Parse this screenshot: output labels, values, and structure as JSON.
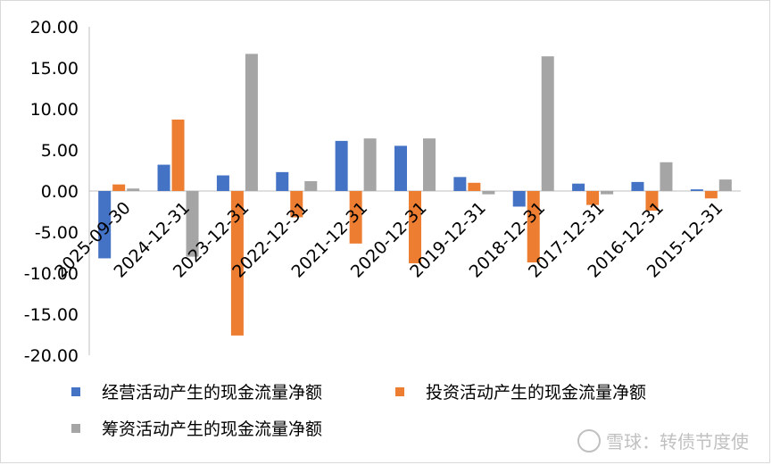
{
  "chart_data": {
    "type": "bar",
    "categories": [
      "2025-09-30",
      "2024-12-31",
      "2023-12-31",
      "2022-12-31",
      "2021-12-31",
      "2020-12-31",
      "2019-12-31",
      "2018-12-31",
      "2017-12-31",
      "2016-12-31",
      "2015-12-31"
    ],
    "series": [
      {
        "name": "经营活动产生的现金流量净额",
        "color": "#4472c4",
        "values": [
          -8.2,
          3.2,
          1.9,
          2.3,
          6.1,
          5.5,
          1.7,
          -1.9,
          0.9,
          1.1,
          0.2
        ]
      },
      {
        "name": "投资活动产生的现金流量净额",
        "color": "#ed7d31",
        "values": [
          0.8,
          8.7,
          -17.6,
          -3.2,
          -6.4,
          -8.8,
          1.0,
          -8.7,
          -1.7,
          -2.4,
          -0.9
        ]
      },
      {
        "name": "筹资活动产生的现金流量净额",
        "color": "#a5a5a5",
        "values": [
          0.3,
          -8.0,
          16.7,
          1.2,
          6.4,
          6.4,
          -0.4,
          16.4,
          -0.4,
          3.5,
          1.4
        ]
      }
    ],
    "ylim": [
      -20,
      20
    ],
    "yticks": [
      "20.00",
      "15.00",
      "10.00",
      "5.00",
      "0.00",
      "-5.00",
      "-10.00",
      "-15.00",
      "-20.00"
    ],
    "grid": false,
    "legend_position": "bottom"
  },
  "watermark": {
    "text": "雪球：转债节度使"
  }
}
